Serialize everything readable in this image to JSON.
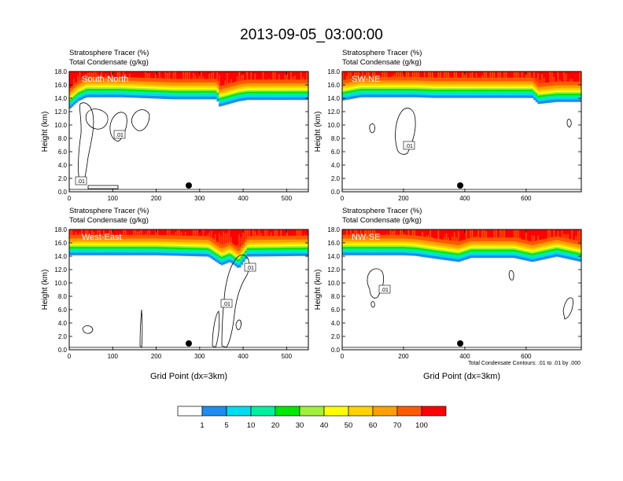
{
  "title": "2013-09-05_03:00:00",
  "colors": [
    "#ffffff",
    "#1e8cf0",
    "#00dcf0",
    "#00f0a0",
    "#00e800",
    "#a0f03c",
    "#ffff00",
    "#ffd200",
    "#ffa000",
    "#ff5a00",
    "#ff0000"
  ],
  "colorbar": {
    "labels": [
      "1",
      "5",
      "10",
      "20",
      "30",
      "40",
      "50",
      "60",
      "70",
      "100"
    ]
  },
  "chart_data": [
    {
      "type": "heatmap",
      "panel": "South-North",
      "header": [
        "Stratosphere Tracer   (%)",
        "Total Condensate   (g/kg)"
      ],
      "ylabel": "Height (km)",
      "xlabel": "",
      "xlim": [
        0,
        550
      ],
      "ylim": [
        0,
        18
      ],
      "xticks": [
        0,
        100,
        200,
        300,
        400,
        500
      ],
      "yticks": [
        "0.0",
        "2.0",
        "4.0",
        "6.0",
        "8.0",
        "10.0",
        "12.0",
        "14.0",
        "16.0",
        "18.0"
      ],
      "tropopause_km": [
        [
          0,
          13.2
        ],
        [
          20,
          14.4
        ],
        [
          40,
          15.0
        ],
        [
          120,
          15.0
        ],
        [
          240,
          14.7
        ],
        [
          340,
          14.7
        ],
        [
          345,
          13.6
        ],
        [
          390,
          14.4
        ],
        [
          410,
          14.6
        ],
        [
          550,
          14.6
        ]
      ],
      "contour_label": ".01",
      "marker_x": 275
    },
    {
      "type": "heatmap",
      "panel": "SW-NE",
      "header": [
        "Stratosphere Tracer   (%)",
        "Total Condensate   (g/kg)"
      ],
      "ylabel": "Height (km)",
      "xlabel": "",
      "xlim": [
        0,
        780
      ],
      "ylim": [
        0,
        18
      ],
      "xticks": [
        0,
        200,
        400,
        600
      ],
      "yticks": [
        "0.0",
        "2.0",
        "4.0",
        "6.0",
        "8.0",
        "10.0",
        "12.0",
        "14.0",
        "16.0",
        "18.0"
      ],
      "tropopause_km": [
        [
          0,
          14.5
        ],
        [
          60,
          15.0
        ],
        [
          240,
          15.0
        ],
        [
          300,
          14.9
        ],
        [
          540,
          14.9
        ],
        [
          620,
          14.9
        ],
        [
          640,
          14.0
        ],
        [
          700,
          14.3
        ],
        [
          780,
          14.3
        ]
      ],
      "contour_label": ".01",
      "marker_x": 385
    },
    {
      "type": "heatmap",
      "panel": "West-East",
      "header": [
        "Stratosphere Tracer   (%)",
        "Total Condensate   (g/kg)"
      ],
      "ylabel": "Height (km)",
      "xlabel": "Grid Point (dx=3km)",
      "xlim": [
        0,
        550
      ],
      "ylim": [
        0,
        18
      ],
      "xticks": [
        0,
        100,
        200,
        300,
        400,
        500
      ],
      "yticks": [
        "0.0",
        "2.0",
        "4.0",
        "6.0",
        "8.0",
        "10.0",
        "12.0",
        "14.0",
        "16.0",
        "18.0"
      ],
      "tropopause_km": [
        [
          0,
          15.0
        ],
        [
          200,
          15.0
        ],
        [
          320,
          14.8
        ],
        [
          350,
          13.5
        ],
        [
          370,
          14.0
        ],
        [
          390,
          13.0
        ],
        [
          410,
          14.8
        ],
        [
          550,
          14.9
        ]
      ],
      "contour_label": ".01",
      "marker_x": 275
    },
    {
      "type": "heatmap",
      "panel": "NW-SE",
      "header": [
        "Stratosphere Tracer   (%)",
        "Total Condensate   (g/kg)"
      ],
      "ylabel": "Height (km)",
      "xlabel": "Grid Point (dx=3km)",
      "xlim": [
        0,
        780
      ],
      "ylim": [
        0,
        18
      ],
      "xticks": [
        0,
        200,
        400,
        600
      ],
      "yticks": [
        "0.0",
        "2.0",
        "4.0",
        "6.0",
        "8.0",
        "10.0",
        "12.0",
        "14.0",
        "16.0",
        "18.0"
      ],
      "tropopause_km": [
        [
          0,
          15.0
        ],
        [
          200,
          15.0
        ],
        [
          240,
          14.9
        ],
        [
          300,
          14.5
        ],
        [
          380,
          14.0
        ],
        [
          420,
          14.6
        ],
        [
          560,
          14.6
        ],
        [
          620,
          14.0
        ],
        [
          700,
          14.8
        ],
        [
          780,
          14.0
        ]
      ],
      "contour_label": ".01",
      "marker_x": 385,
      "footnote": "Total Condensate Contours: .01 to .01 by .000"
    }
  ]
}
